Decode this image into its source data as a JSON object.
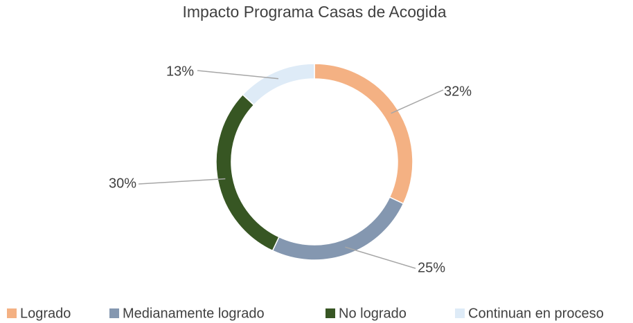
{
  "chart_data": {
    "type": "donut",
    "title": "Impacto Programa Casas de Acogida",
    "categories": [
      "Logrado",
      "Medianamente logrado",
      "No logrado",
      "Continuan en proceso"
    ],
    "values": [
      32,
      25,
      30,
      13
    ],
    "value_labels": [
      "32%",
      "25%",
      "30%",
      "13%"
    ],
    "colors": [
      "#f4b183",
      "#8497b0",
      "#375623",
      "#deebf7"
    ],
    "legend": "bottom"
  }
}
